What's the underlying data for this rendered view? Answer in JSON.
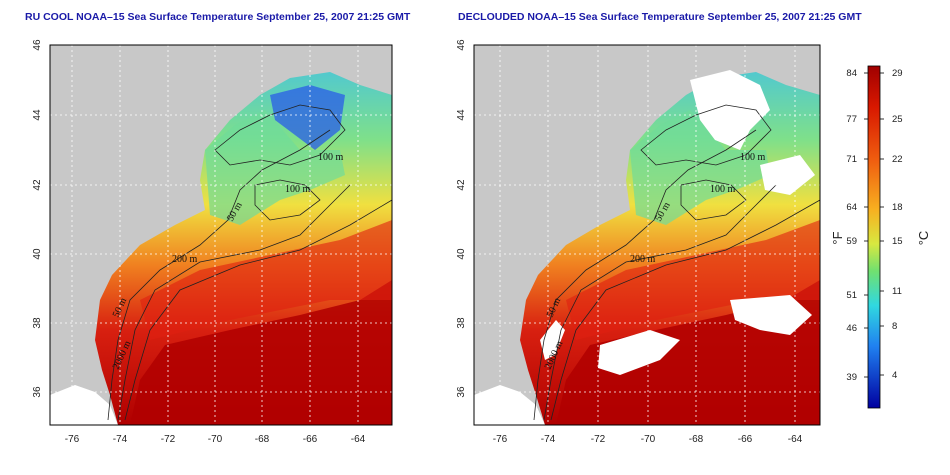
{
  "titles": {
    "left": "RU COOL NOAA–15 Sea Surface Temperature September 25, 2007 21:25 GMT",
    "right": "DECLOUDED NOAA–15 Sea Surface Temperature September 25, 2007 21:25 GMT"
  },
  "map": {
    "lon_ticks": [
      "-76",
      "-74",
      "-72",
      "-70",
      "-68",
      "-66",
      "-64"
    ],
    "lat_ticks": [
      "46",
      "44",
      "42",
      "40",
      "38",
      "36"
    ],
    "lon_range": [
      -77.2,
      -62.8
    ],
    "lat_range": [
      35.0,
      46.0
    ],
    "contour_labels": [
      "100 m",
      "100 m",
      "50 m",
      "200 m",
      "50 m",
      "2000 m"
    ]
  },
  "colorbar": {
    "fahrenheit_ticks": [
      "84",
      "77",
      "71",
      "64",
      "59",
      "51",
      "46",
      "39"
    ],
    "celsius_ticks": [
      "29",
      "25",
      "22",
      "18",
      "15",
      "11",
      "8",
      "4"
    ],
    "fahrenheit_unit": "°F",
    "celsius_unit": "°C",
    "colors": {
      "warm": "#b30000",
      "mid": "#f0c020",
      "cool": "#30d8e0",
      "cold": "#0000a0"
    }
  },
  "colors": {
    "land": "#c8c8c8",
    "title": "#1a1aa8",
    "cloud": "#ffffff"
  }
}
